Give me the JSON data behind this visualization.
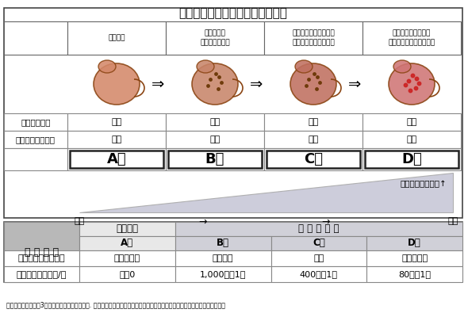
{
  "title": "胃がんリスク検診の総合判定方法",
  "title_fontsize": 12,
  "background_color": "#ffffff",
  "outer_border_color": "#333333",
  "upper_section": {
    "column_headers": [
      "正常な胃",
      "正常な胃に\nピロリ菌が感染",
      "胃粘膜が炎症を起こし\n少しずつ胃が萎縮する",
      "胃粘膜の萎縮が進み\nピロリ菌も生息できない"
    ],
    "row1_label": "ピロリ菌抗体",
    "row1_values": [
      "陰性",
      "陽性",
      "陽性",
      "陰性"
    ],
    "row2_label": "ペプシノゲン検査",
    "row2_values": [
      "陰性",
      "陰性",
      "陽性",
      "陽性"
    ],
    "group_labels": [
      "A群",
      "B群",
      "C群",
      "D群"
    ],
    "arrow_label_left": "低い",
    "arrow_label_right": "高い",
    "risk_label": "胃がんの危険度　↑",
    "triangle_color": "#c8c8d8"
  },
  "lower_section": {
    "header_col": "総 合 判 定",
    "span_header_a": "精検不要",
    "span_header_b": "要 精 密 検 査",
    "group_labels": [
      "A群",
      "B群",
      "C群",
      "D群"
    ],
    "row1_label": "胃がんの発生リスク",
    "row1_values": [
      "非常に低い",
      "やや高い",
      "高い",
      "非常に高い"
    ],
    "row2_label": "胃がんの発生頻度/年",
    "row2_values": [
      "ほぼ0",
      "1,000人に1人",
      "400人に1人",
      "80人に1人"
    ],
    "col_a_bg": "#e8e8e8",
    "col_bcd_bg": "#d0d0d8",
    "header_bg": "#b8b8b8"
  },
  "footnote": "出典：三木一正　第3次対がん総合戦略研究事業. 胃がんスクリーニングのハイリスクストラテジーに関する研究（厚生労働省）"
}
